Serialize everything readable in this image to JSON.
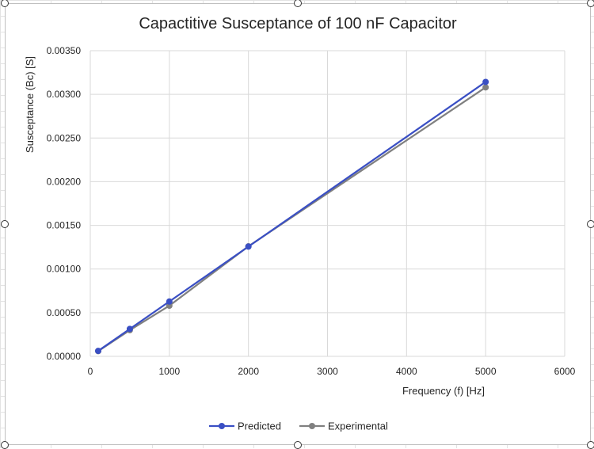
{
  "chart_data": {
    "type": "line",
    "title": "Capactitive Susceptance of 100 nF Capacitor",
    "xlabel": "Frequency (f) [Hz]",
    "ylabel": "Susceptance (Bc) [S]",
    "xlim": [
      0,
      6000
    ],
    "ylim": [
      0,
      0.0035
    ],
    "xticks": [
      "0",
      "1000",
      "2000",
      "3000",
      "4000",
      "5000",
      "6000"
    ],
    "yticks": [
      "0.00000",
      "0.00050",
      "0.00100",
      "0.00150",
      "0.00200",
      "0.00250",
      "0.00300",
      "0.00350"
    ],
    "grid": true,
    "legend_position": "bottom",
    "series": [
      {
        "name": "Predicted",
        "color": "#3a4fc4",
        "x": [
          100,
          500,
          1000,
          2000,
          5000
        ],
        "y": [
          6.28e-05,
          0.000314,
          0.000628,
          0.001257,
          0.003142
        ]
      },
      {
        "name": "Experimental",
        "color": "#808080",
        "x": [
          100,
          500,
          1000,
          2000,
          5000
        ],
        "y": [
          6e-05,
          0.0003,
          0.00058,
          0.00126,
          0.00308
        ]
      }
    ]
  }
}
